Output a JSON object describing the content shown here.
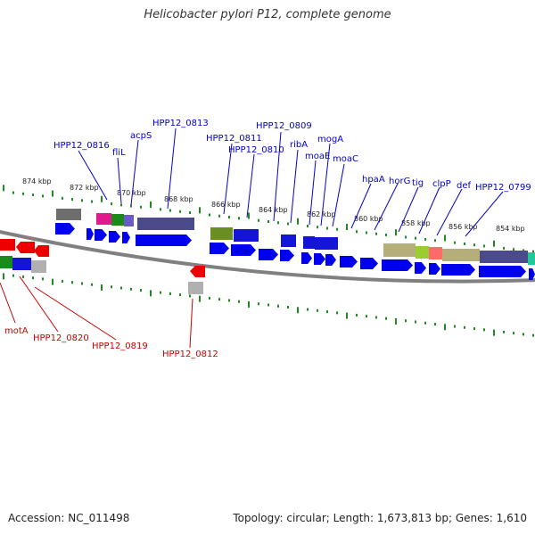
{
  "title": "Helicobacter pylori P12, complete genome",
  "footer": {
    "accession": "Accession: NC_011498",
    "summary": "Topology: circular; Length: 1,673,813 bp; Genes: 1,610"
  },
  "colors": {
    "backbone": "#808080",
    "forward_gene": "#0000ee",
    "reverse_gene": "#ee0000",
    "scale": "#228822",
    "label_forward": "#0000cc",
    "label_reverse": "#cc0000"
  },
  "scale_labels": [
    "874 kbp",
    "872 kbp",
    "870 kbp",
    "868 kbp",
    "866 kbp",
    "864 kbp",
    "862 kbp",
    "860 kbp",
    "858 kbp",
    "856 kbp",
    "854 kbp"
  ],
  "gene_labels_top": [
    "HPP12_0816",
    "fliL",
    "acpS",
    "HPP12_0813",
    "HPP12_0811",
    "HPP12_0810",
    "HPP12_0809",
    "ribA",
    "moaE",
    "mogA",
    "moaC",
    "hpaA",
    "horG",
    "tig",
    "clpP",
    "def",
    "HPP12_0799"
  ],
  "gene_labels_bottom": [
    "motA",
    "HPP12_0820",
    "HPP12_0819",
    "HPP12_0812"
  ]
}
